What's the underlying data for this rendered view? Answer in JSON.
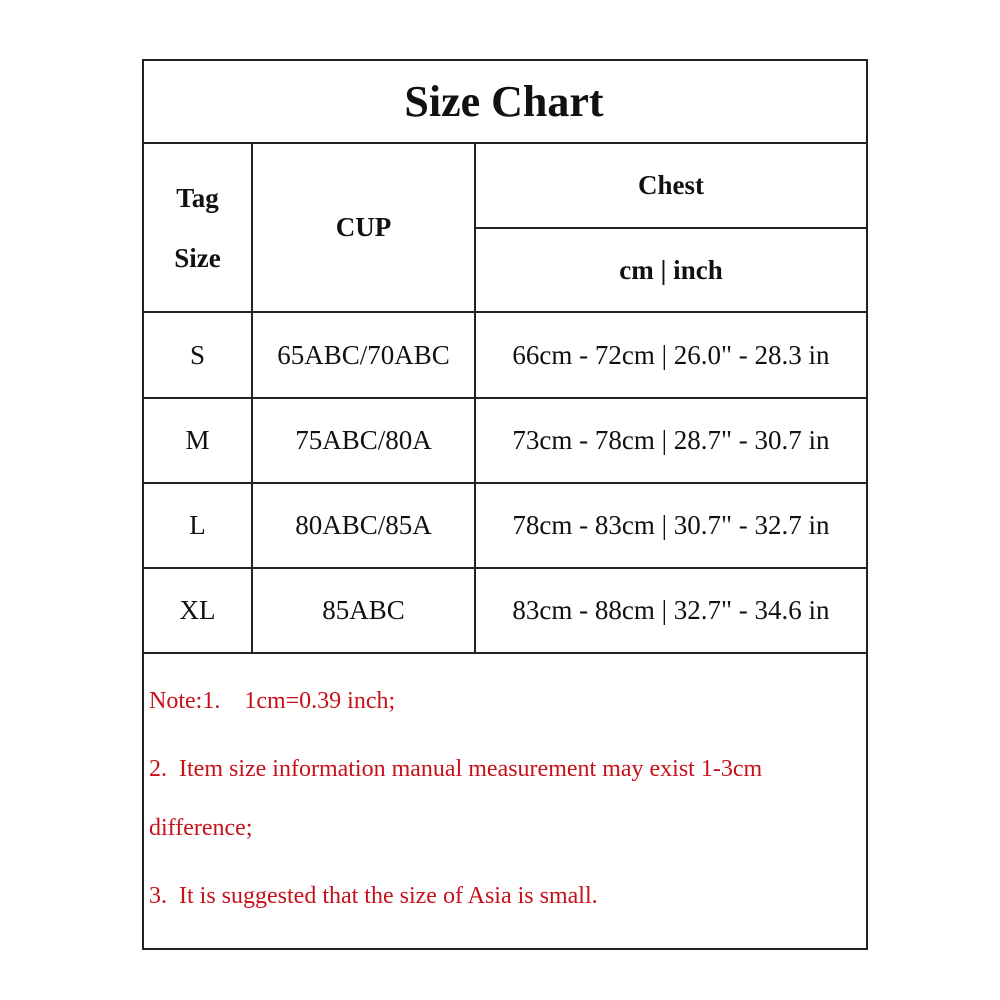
{
  "title": "Size Chart",
  "header": {
    "tag_size_line1": "Tag",
    "tag_size_line2": "Size",
    "cup": "CUP",
    "chest": "Chest",
    "chest_units": "cm | inch"
  },
  "rows": [
    {
      "size": "S",
      "cup": "65ABC/70ABC",
      "chest": "66cm - 72cm | 26.0\" - 28.3 in"
    },
    {
      "size": "M",
      "cup": "75ABC/80A",
      "chest": "73cm - 78cm | 28.7\" - 30.7 in"
    },
    {
      "size": "L",
      "cup": "80ABC/85A",
      "chest": "78cm - 83cm | 30.7\" - 32.7 in"
    },
    {
      "size": "XL",
      "cup": "85ABC",
      "chest": "83cm - 88cm | 32.7\" - 34.6 in"
    }
  ],
  "notes": {
    "line1": "Note:1.    1cm=0.39 inch;",
    "line2": "2.  Item size information manual measurement may exist 1-3cm",
    "line3": "difference;",
    "line4": "3.  It is suggested that the size of Asia is small."
  },
  "colors": {
    "note_text": "#c8101a",
    "border": "#222222"
  }
}
